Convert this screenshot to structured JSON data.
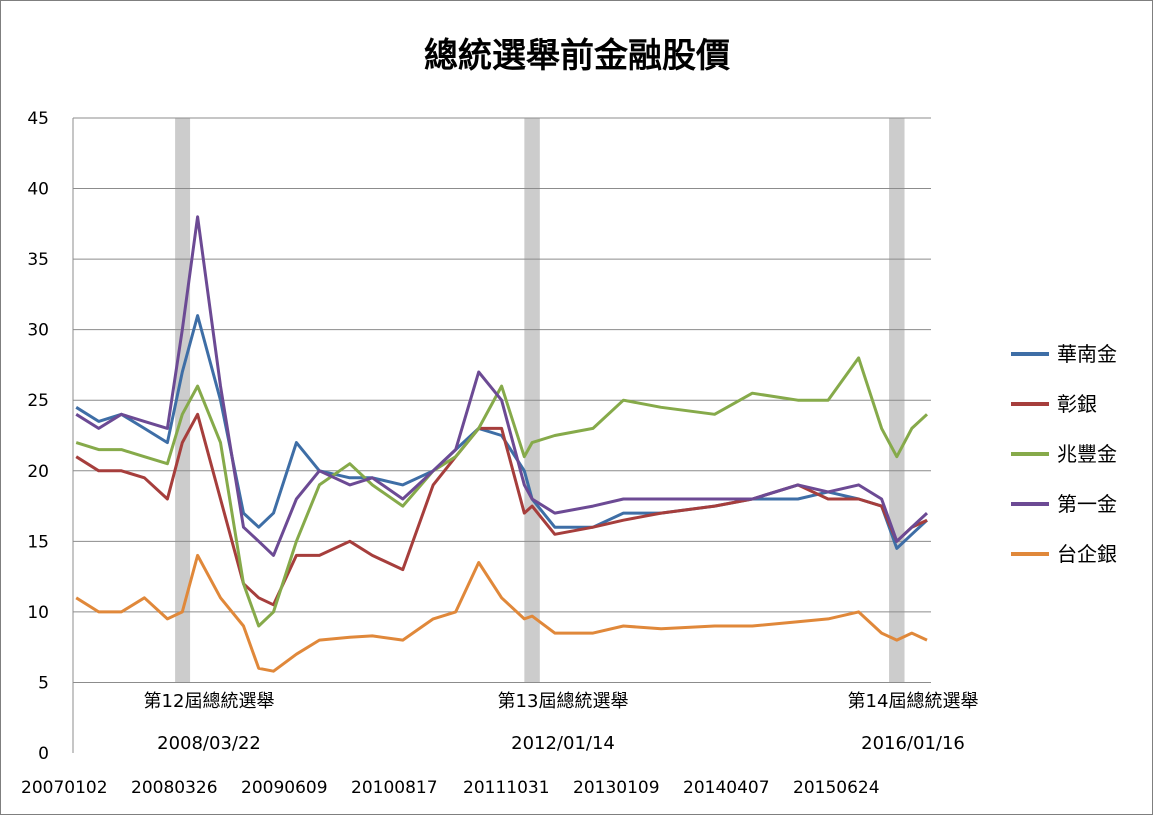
{
  "chart_data": {
    "type": "line",
    "title": "總統選舉前金融股價",
    "xlabel": "",
    "ylabel": "",
    "ylim": [
      0,
      45
    ],
    "yticks": [
      0,
      5,
      10,
      15,
      20,
      25,
      30,
      35,
      40,
      45
    ],
    "x_tick_labels": [
      "20070102",
      "20080326",
      "20090609",
      "20100817",
      "20111031",
      "20130109",
      "20140407",
      "20150624"
    ],
    "grid": true,
    "legend_position": "right",
    "x": [
      "2007-01",
      "2007-04",
      "2007-07",
      "2007-10",
      "2008-01",
      "2008-03",
      "2008-05",
      "2008-08",
      "2008-11",
      "2009-01",
      "2009-03",
      "2009-06",
      "2009-09",
      "2010-01",
      "2010-04",
      "2010-08",
      "2010-12",
      "2011-03",
      "2011-06",
      "2011-09",
      "2011-12",
      "2012-01",
      "2012-04",
      "2012-09",
      "2013-01",
      "2013-06",
      "2014-01",
      "2014-06",
      "2014-12",
      "2015-04",
      "2015-08",
      "2015-11",
      "2016-01",
      "2016-03",
      "2016-05"
    ],
    "series": [
      {
        "name": "華南金",
        "color": "#3e6ea6",
        "values": [
          24.5,
          23.5,
          24,
          23,
          22,
          27,
          31,
          25,
          17,
          16,
          17,
          22,
          20,
          19.5,
          19.5,
          19,
          20,
          21.5,
          23,
          22.5,
          20,
          18,
          16,
          16,
          17,
          17,
          17.5,
          18,
          18,
          18.5,
          18,
          17.5,
          14.5,
          15.5,
          16.5
        ]
      },
      {
        "name": "彰銀",
        "color": "#a63e3c",
        "values": [
          21,
          20,
          20,
          19.5,
          18,
          22,
          24,
          18,
          12,
          11,
          10.5,
          14,
          14,
          15,
          14,
          13,
          19,
          21,
          23,
          23,
          17,
          17.5,
          15.5,
          16,
          16.5,
          17,
          17.5,
          18,
          19,
          18,
          18,
          17.5,
          15,
          16,
          16.5
        ]
      },
      {
        "name": "兆豐金",
        "color": "#86aa4a",
        "values": [
          22,
          21.5,
          21.5,
          21,
          20.5,
          24,
          26,
          22,
          12,
          9,
          10,
          15,
          19,
          20.5,
          19,
          17.5,
          20,
          21,
          23,
          26,
          21,
          22,
          22.5,
          23,
          25,
          24.5,
          24,
          25.5,
          25,
          25,
          28,
          23,
          21,
          23,
          24
        ]
      },
      {
        "name": "第一金",
        "color": "#6c4a94",
        "values": [
          24,
          23,
          24,
          23.5,
          23,
          30,
          38,
          26,
          16,
          15,
          14,
          18,
          20,
          19,
          19.5,
          18,
          20,
          21.5,
          27,
          25,
          19,
          18,
          17,
          17.5,
          18,
          18,
          18,
          18,
          19,
          18.5,
          19,
          18,
          15,
          16,
          17
        ]
      },
      {
        "name": "台企銀",
        "color": "#e0883a",
        "values": [
          11,
          10,
          10,
          11,
          9.5,
          10,
          14,
          11,
          9,
          6,
          5.8,
          7,
          8,
          8.2,
          8.3,
          8,
          9.5,
          10,
          13.5,
          11,
          9.5,
          9.7,
          8.5,
          8.5,
          9,
          8.8,
          9,
          9,
          9.3,
          9.5,
          10,
          8.5,
          8,
          8.5,
          8
        ]
      }
    ],
    "election_bands": [
      {
        "start": "2008-02",
        "end": "2008-04",
        "label": "第12屆總統選舉",
        "date": "2008/03/22"
      },
      {
        "start": "2011-12",
        "end": "2012-02",
        "label": "第13屆總統選舉",
        "date": "2012/01/14"
      },
      {
        "start": "2015-12",
        "end": "2016-02",
        "label": "第14屆總統選舉",
        "date": "2016/01/16"
      }
    ]
  }
}
